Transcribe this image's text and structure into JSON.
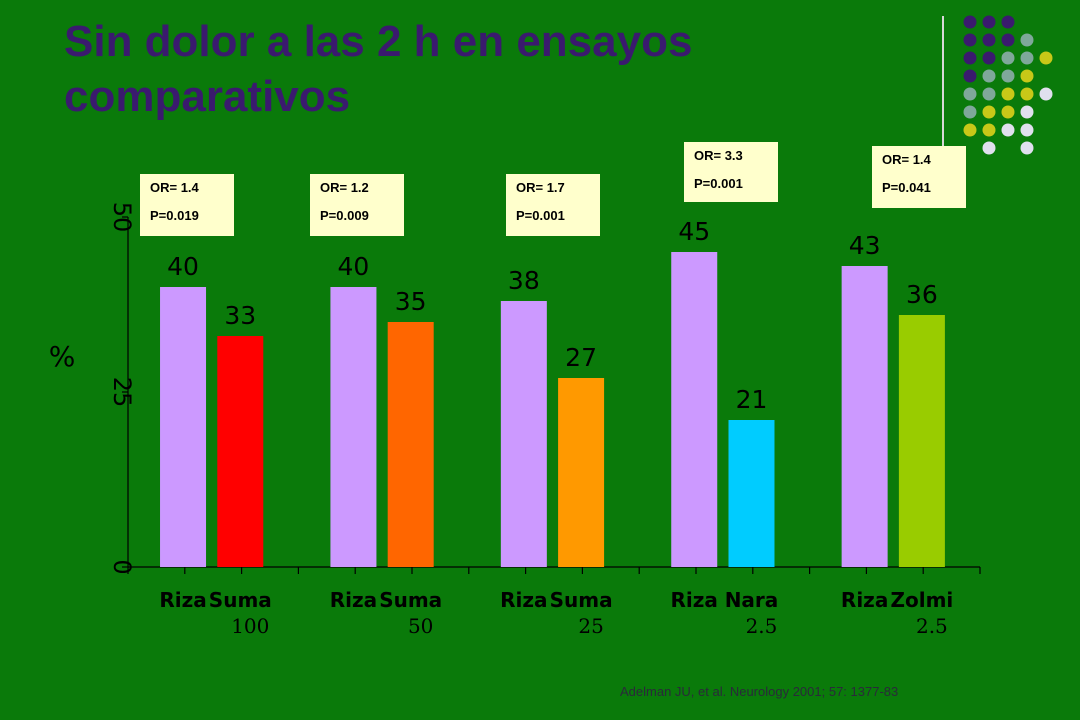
{
  "title_lines": [
    "Sin dolor a las 2 h en ensayos",
    "comparativos"
  ],
  "citation": "Adelman JU, et al. Neurology 2001; 57: 1377-83",
  "decor_colors": {
    "purple": "#3a1a6e",
    "gray": "#7fa89a",
    "yellow": "#c8c818",
    "light": "#e0e0ee"
  },
  "annotations": [
    {
      "or": "OR= 1.4",
      "p": "P=0.019"
    },
    {
      "or": "OR= 1.2",
      "p": "P=0.009"
    },
    {
      "or": "OR= 1.7",
      "p": "P=0.001"
    },
    {
      "or": "OR= 3.3",
      "p": "P=0.001"
    },
    {
      "or": "OR= 1.4",
      "p": "P=0.041"
    }
  ],
  "chart_data": {
    "type": "bar",
    "ylabel": "%",
    "ylim": [
      0,
      50
    ],
    "yticks": [
      "0",
      "25",
      "50"
    ],
    "grid": false,
    "groups": [
      {
        "bars": [
          {
            "label": "Riza",
            "dose": "",
            "value": 40,
            "value_label": "40",
            "color": "#cc99ff"
          },
          {
            "label": "Suma",
            "dose": "100",
            "value": 33,
            "value_label": "33",
            "color": "#ff0000"
          }
        ]
      },
      {
        "bars": [
          {
            "label": "Riza",
            "dose": "",
            "value": 40,
            "value_label": "40",
            "color": "#cc99ff"
          },
          {
            "label": "Suma",
            "dose": "50",
            "value": 35,
            "value_label": "35",
            "color": "#ff6600"
          }
        ]
      },
      {
        "bars": [
          {
            "label": "Riza",
            "dose": "",
            "value": 38,
            "value_label": "38",
            "color": "#cc99ff"
          },
          {
            "label": "Suma",
            "dose": "25",
            "value": 27,
            "value_label": "27",
            "color": "#ff9900"
          }
        ]
      },
      {
        "bars": [
          {
            "label": "Riza",
            "dose": "",
            "value": 45,
            "value_label": "45",
            "color": "#cc99ff"
          },
          {
            "label": "Nara",
            "dose": "2.5",
            "value": 21,
            "value_label": "21",
            "color": "#00ccff"
          }
        ]
      },
      {
        "bars": [
          {
            "label": "Riza",
            "dose": "",
            "value": 43,
            "value_label": "43",
            "color": "#cc99ff"
          },
          {
            "label": "Zolmi",
            "dose": "2.5",
            "value": 36,
            "value_label": "36",
            "color": "#99cc00"
          }
        ]
      }
    ]
  }
}
